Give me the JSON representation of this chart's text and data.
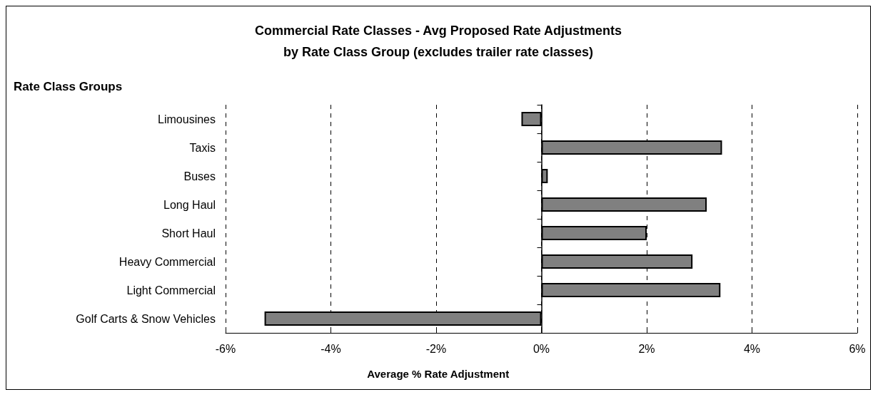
{
  "chart_data": {
    "type": "bar",
    "orientation": "horizontal",
    "title": "Commercial Rate Classes - Avg Proposed Rate Adjustments\nby Rate Class Group (excludes trailer rate classes)",
    "ylabel": "Rate Class Groups",
    "xlabel": "Average % Rate Adjustment",
    "categories": [
      "Limousines",
      "Taxis",
      "Buses",
      "Long Haul",
      "Short Haul",
      "Heavy Commercial",
      "Light Commercial",
      "Golf Carts & Snow Vehicles"
    ],
    "values": [
      -0.38,
      3.43,
      0.12,
      3.14,
      2.0,
      2.87,
      3.4,
      -5.26
    ],
    "color": "#808080",
    "xlim": [
      -6,
      6
    ],
    "xticks": [
      {
        "value": -6,
        "label": "-6%"
      },
      {
        "value": -4,
        "label": "-4%"
      },
      {
        "value": -2,
        "label": "-2%"
      },
      {
        "value": 0,
        "label": "0%"
      },
      {
        "value": 2,
        "label": "2%"
      },
      {
        "value": 4,
        "label": "4%"
      },
      {
        "value": 6,
        "label": "6%"
      }
    ],
    "grid": "x"
  }
}
